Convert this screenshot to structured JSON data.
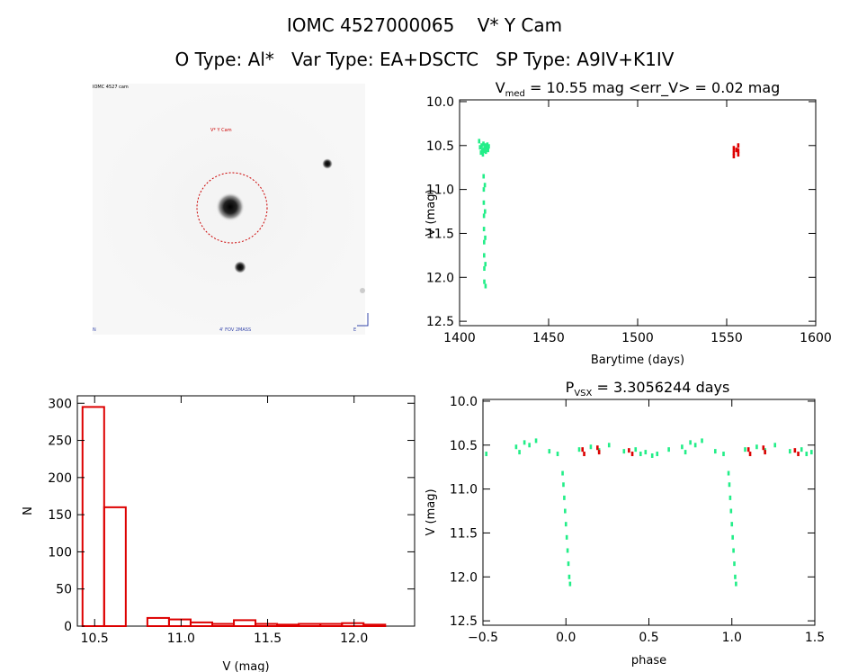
{
  "header": {
    "title": "IOMC 4527000065    V* Y Cam",
    "subtitle": "O Type: Al*   Var Type: EA+DSCTC   SP Type: A9IV+K1IV"
  },
  "colors": {
    "green": "#22ee88",
    "red": "#dd0000",
    "axis": "#000000",
    "circle": "#cc0000"
  },
  "image_panel": {
    "label_top_left": "IOMC 4527 cam",
    "label_target": "V* Y Cam",
    "label_bottom_left": "N",
    "label_bottom_center": "4' FOV 2MASS",
    "label_bottom_right": "E"
  },
  "chart_data": [
    {
      "type": "scatter",
      "title": "V_med = 10.55 mag  <err_V> = 0.02 mag",
      "title_parts": {
        "main": "V",
        "sub": "med",
        "rest": " = 10.55 mag <err_V> = 0.02 mag"
      },
      "xlabel": "Barytime (days)",
      "ylabel": "V (mag)",
      "xlim": [
        1400,
        1600
      ],
      "ylim": [
        12.55,
        9.98
      ],
      "xticks": [
        1400,
        1450,
        1500,
        1550,
        1600
      ],
      "yticks": [
        "10.0",
        "10.5",
        "11.0",
        "11.5",
        "12.0",
        "12.5"
      ],
      "ytick_values": [
        10.0,
        10.5,
        11.0,
        11.5,
        12.0,
        12.5
      ],
      "series": [
        {
          "name": "green",
          "color": "#22ee88",
          "points": [
            [
              1411,
              10.45
            ],
            [
              1411.5,
              10.52
            ],
            [
              1412,
              10.58
            ],
            [
              1412.4,
              10.5
            ],
            [
              1412.8,
              10.55
            ],
            [
              1413.1,
              10.6
            ],
            [
              1413.4,
              10.48
            ],
            [
              1413.7,
              10.56
            ],
            [
              1414,
              10.53
            ],
            [
              1414.4,
              10.5
            ],
            [
              1414.8,
              10.57
            ],
            [
              1415.2,
              10.52
            ],
            [
              1415.6,
              10.49
            ],
            [
              1416,
              10.55
            ],
            [
              1416.4,
              10.51
            ],
            [
              1413.5,
              10.85
            ],
            [
              1413.6,
              11.0
            ],
            [
              1413.6,
              11.15
            ],
            [
              1413.7,
              11.3
            ],
            [
              1413.7,
              11.45
            ],
            [
              1413.8,
              11.6
            ],
            [
              1413.8,
              11.75
            ],
            [
              1413.9,
              11.9
            ],
            [
              1413.9,
              12.05
            ],
            [
              1414.2,
              10.95
            ],
            [
              1414.3,
              11.25
            ],
            [
              1414.4,
              11.55
            ],
            [
              1414.5,
              11.85
            ],
            [
              1414.6,
              12.1
            ]
          ]
        },
        {
          "name": "red",
          "color": "#dd0000",
          "points": [
            [
              1554,
              10.58
            ],
            [
              1554,
              10.53
            ],
            [
              1554,
              10.62
            ],
            [
              1556.5,
              10.5
            ],
            [
              1556.5,
              10.56
            ],
            [
              1556.5,
              10.6
            ],
            [
              1555.5,
              10.55
            ]
          ]
        }
      ]
    },
    {
      "type": "bar",
      "xlabel": "V (mag)",
      "ylabel": "N",
      "xlim": [
        10.4,
        12.35
      ],
      "ylim": [
        0,
        310
      ],
      "xticks": [
        "10.5",
        "11.0",
        "11.5",
        "12.0"
      ],
      "xtick_values": [
        10.5,
        11.0,
        11.5,
        12.0
      ],
      "yticks": [
        "0",
        "50",
        "100",
        "150",
        "200",
        "250",
        "300"
      ],
      "ytick_values": [
        0,
        50,
        100,
        150,
        200,
        250,
        300
      ],
      "bin_edges": [
        10.43,
        10.555,
        10.68,
        10.805,
        10.93,
        11.055,
        11.18,
        11.305,
        11.43,
        11.555,
        11.68,
        11.805,
        11.93,
        12.055,
        12.18
      ],
      "values": [
        295,
        160,
        0,
        11,
        9,
        5,
        3,
        8,
        3,
        2,
        3,
        3,
        4,
        2
      ],
      "color": "#dd0000"
    },
    {
      "type": "scatter",
      "title": "P_vsx = 3.3056244 days",
      "title_parts": {
        "main": "P",
        "sub": "VSX",
        "rest": " = 3.3056244 days"
      },
      "xlabel": "phase",
      "ylabel": "V (mag)",
      "xlim": [
        -0.5,
        1.5
      ],
      "ylim": [
        12.55,
        9.98
      ],
      "xticks": [
        "−0.5",
        "0.0",
        "0.5",
        "1.0",
        "1.5"
      ],
      "xtick_values": [
        -0.5,
        0.0,
        0.5,
        1.0,
        1.5
      ],
      "yticks": [
        "10.0",
        "10.5",
        "11.0",
        "11.5",
        "12.0",
        "12.5"
      ],
      "ytick_values": [
        10.0,
        10.5,
        11.0,
        11.5,
        12.0,
        12.5
      ],
      "series": [
        {
          "name": "green",
          "color": "#22ee88",
          "points": [
            [
              -0.48,
              10.6
            ],
            [
              -0.3,
              10.52
            ],
            [
              -0.28,
              10.58
            ],
            [
              -0.25,
              10.47
            ],
            [
              -0.22,
              10.5
            ],
            [
              -0.18,
              10.45
            ],
            [
              -0.1,
              10.57
            ],
            [
              -0.05,
              10.6
            ],
            [
              -0.02,
              10.82
            ],
            [
              -0.015,
              10.95
            ],
            [
              -0.01,
              11.1
            ],
            [
              -0.005,
              11.25
            ],
            [
              0.0,
              11.4
            ],
            [
              0.005,
              11.55
            ],
            [
              0.01,
              11.7
            ],
            [
              0.015,
              11.85
            ],
            [
              0.02,
              12.0
            ],
            [
              0.025,
              12.08
            ],
            [
              0.08,
              10.55
            ],
            [
              0.15,
              10.52
            ],
            [
              0.2,
              10.56
            ],
            [
              0.26,
              10.5
            ],
            [
              0.35,
              10.57
            ],
            [
              0.42,
              10.55
            ],
            [
              0.45,
              10.6
            ],
            [
              0.48,
              10.58
            ],
            [
              0.52,
              10.62
            ],
            [
              0.55,
              10.6
            ],
            [
              0.62,
              10.55
            ],
            [
              0.7,
              10.52
            ],
            [
              0.72,
              10.58
            ],
            [
              0.75,
              10.47
            ],
            [
              0.78,
              10.5
            ],
            [
              0.82,
              10.45
            ],
            [
              0.9,
              10.57
            ],
            [
              0.95,
              10.6
            ],
            [
              0.98,
              10.82
            ],
            [
              0.985,
              10.95
            ],
            [
              0.99,
              11.1
            ],
            [
              0.995,
              11.25
            ],
            [
              1.0,
              11.4
            ],
            [
              1.005,
              11.55
            ],
            [
              1.01,
              11.7
            ],
            [
              1.015,
              11.85
            ],
            [
              1.02,
              12.0
            ],
            [
              1.025,
              12.08
            ],
            [
              1.08,
              10.55
            ],
            [
              1.15,
              10.52
            ],
            [
              1.2,
              10.56
            ],
            [
              1.26,
              10.5
            ],
            [
              1.35,
              10.57
            ],
            [
              1.42,
              10.55
            ],
            [
              1.45,
              10.6
            ],
            [
              1.48,
              10.58
            ]
          ]
        },
        {
          "name": "red",
          "color": "#dd0000",
          "points": [
            [
              0.1,
              10.55
            ],
            [
              0.11,
              10.6
            ],
            [
              0.19,
              10.53
            ],
            [
              0.2,
              10.58
            ],
            [
              0.38,
              10.56
            ],
            [
              0.4,
              10.6
            ],
            [
              1.1,
              10.55
            ],
            [
              1.11,
              10.6
            ],
            [
              1.19,
              10.53
            ],
            [
              1.2,
              10.58
            ],
            [
              1.38,
              10.56
            ],
            [
              1.4,
              10.6
            ]
          ]
        }
      ]
    }
  ]
}
